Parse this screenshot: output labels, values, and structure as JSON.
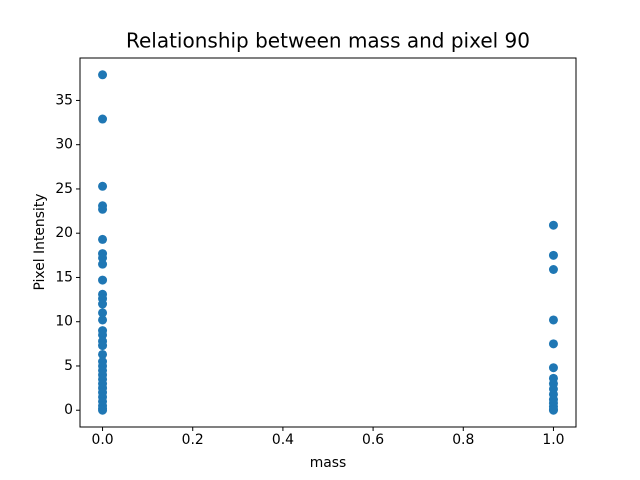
{
  "chart_data": {
    "type": "scatter",
    "title": "Relationship between mass and pixel 90",
    "xlabel": "mass",
    "ylabel": "Pixel Intensity",
    "color": "#1f77b4",
    "x": [
      0,
      0,
      0,
      0,
      0,
      0,
      0,
      0,
      0,
      0,
      0,
      0,
      0,
      0,
      0,
      0,
      0,
      0,
      0,
      0,
      0,
      0,
      0,
      0,
      0,
      0,
      0,
      0,
      0,
      0,
      0,
      0,
      0,
      1,
      1,
      1,
      1,
      1,
      1,
      1,
      1,
      1,
      1,
      1,
      1,
      1,
      1,
      1
    ],
    "values": [
      37.9,
      32.9,
      25.3,
      23.1,
      22.7,
      19.3,
      17.7,
      17.2,
      16.5,
      14.7,
      13.1,
      12.6,
      12.0,
      11.0,
      10.2,
      9.0,
      8.5,
      7.8,
      7.3,
      6.3,
      5.5,
      5.0,
      4.5,
      4.0,
      3.5,
      3.0,
      2.5,
      2.0,
      1.5,
      1.0,
      0.5,
      0.2,
      0,
      20.9,
      17.5,
      15.9,
      10.2,
      7.5,
      4.8,
      3.6,
      3.0,
      2.4,
      1.8,
      1.2,
      0.8,
      0.4,
      0.1,
      0
    ],
    "xlim": [
      -0.05,
      1.05
    ],
    "xticks": [
      {
        "value": 0,
        "label": "0.0"
      },
      {
        "value": 0.2,
        "label": "0.2"
      },
      {
        "value": 0.4,
        "label": "0.4"
      },
      {
        "value": 0.6,
        "label": "0.6"
      },
      {
        "value": 0.8,
        "label": "0.8"
      },
      {
        "value": 1,
        "label": "1.0"
      }
    ],
    "ylim": [
      -1.895,
      39.795
    ],
    "yticks": [
      0,
      5,
      10,
      15,
      20,
      25,
      30,
      35
    ]
  }
}
